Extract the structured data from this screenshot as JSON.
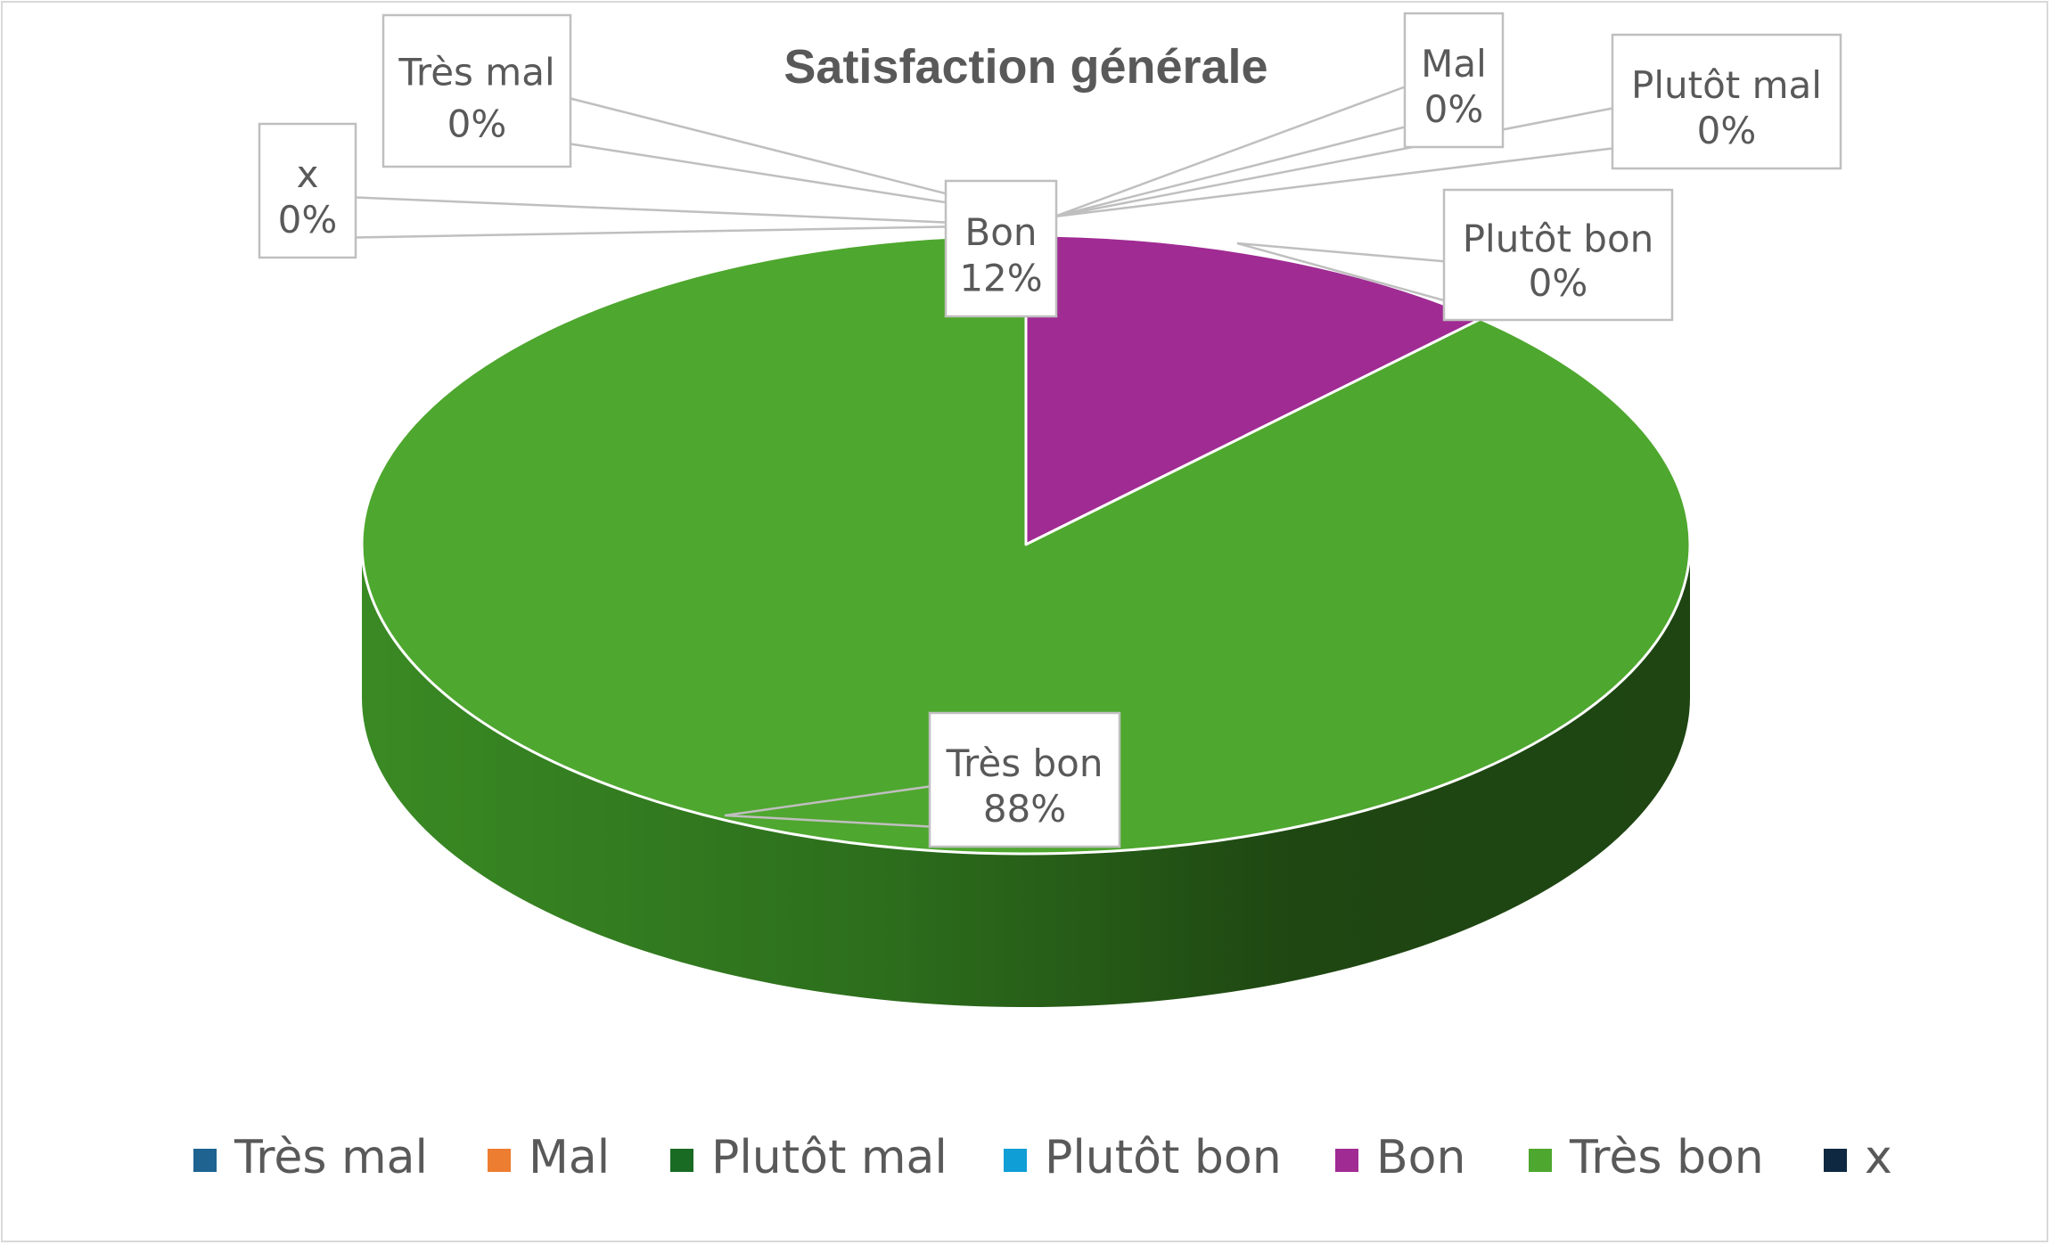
{
  "chart_data": {
    "type": "pie",
    "title": "Satisfaction générale",
    "is_3d": true,
    "categories": [
      "Très mal",
      "Mal",
      "Plutôt mal",
      "Plutôt bon",
      "Bon",
      "Très bon",
      "x"
    ],
    "values": [
      0,
      0,
      0,
      0,
      12,
      88,
      0
    ],
    "value_labels": [
      "0%",
      "0%",
      "0%",
      "0%",
      "12%",
      "88%",
      "0%"
    ],
    "colors": [
      "#1f6391",
      "#ed7d31",
      "#196b24",
      "#0f9ed5",
      "#a02b93",
      "#4ea72e",
      "#0e2841"
    ],
    "legend_position": "bottom"
  }
}
